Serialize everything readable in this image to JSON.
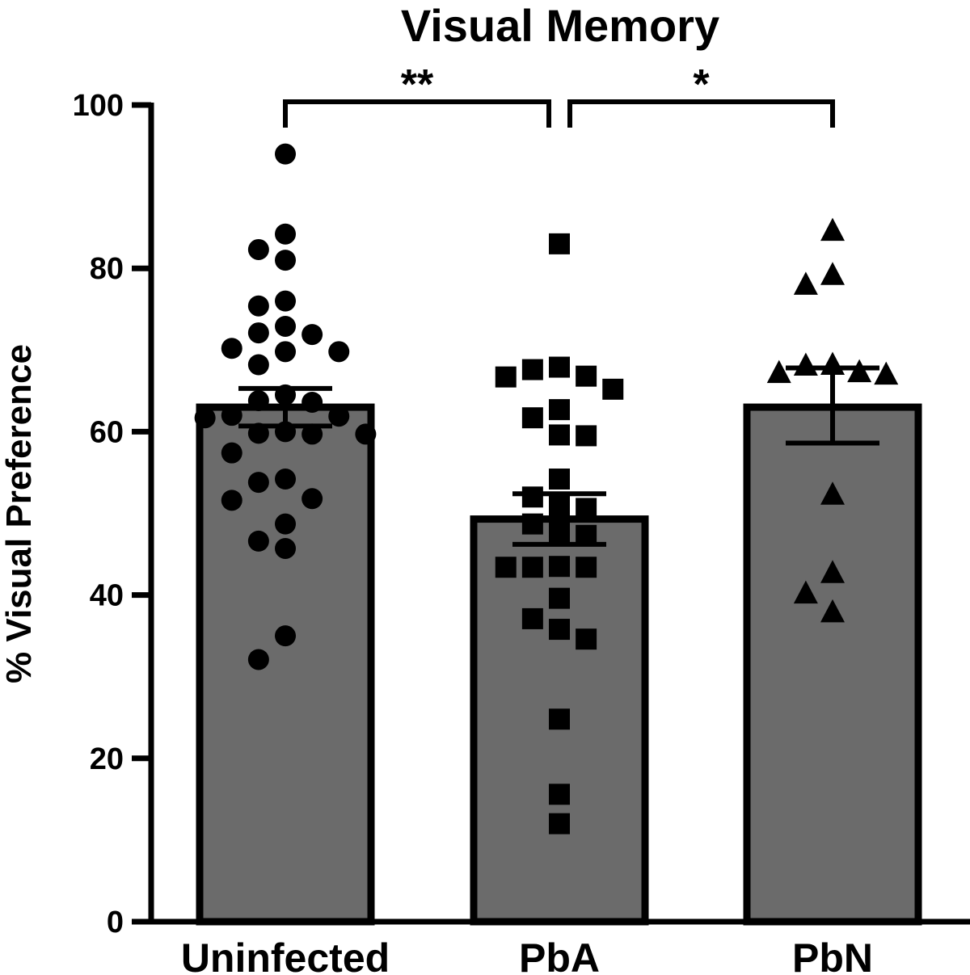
{
  "chart_data": {
    "type": "bar",
    "title": "Visual Memory",
    "ylabel": "% Visual Preference",
    "xlabel": "",
    "ylim": [
      0,
      100
    ],
    "yticks": [
      0,
      20,
      40,
      60,
      80,
      100
    ],
    "ytick_labels": [
      "0",
      "20",
      "40",
      "60",
      "80",
      "100"
    ],
    "categories": [
      "Uninfected",
      "PbA",
      "PbN"
    ],
    "means": [
      63,
      49.3,
      63
    ],
    "sem_upper": [
      65.3,
      52.4,
      67.8
    ],
    "sem_lower": [
      60.7,
      46.2,
      58.6
    ],
    "bar_color": "#6b6b6b",
    "points": [
      {
        "category": "Uninfected",
        "marker": "circle",
        "values": [
          94,
          84.2,
          82.3,
          81,
          76,
          75.4,
          72.9,
          72.1,
          71.9,
          70.2,
          69.8,
          69.8,
          68.2,
          64.5,
          63.8,
          63.6,
          62,
          61.9,
          61.7,
          60,
          59.8,
          59.7,
          59.7,
          57.4,
          54.2,
          53.8,
          51.8,
          51.6,
          48.7,
          46.6,
          45.7,
          35,
          32.1
        ]
      },
      {
        "category": "PbA",
        "marker": "square",
        "values": [
          83,
          67.9,
          67.6,
          66.8,
          66.7,
          65.2,
          62.7,
          61.7,
          59.6,
          59.5,
          54.2,
          52,
          50.9,
          50.6,
          48.7,
          47.6,
          47.3,
          43.5,
          43.4,
          43.4,
          43.4,
          39.6,
          37.1,
          35.8,
          34.6,
          24.8,
          15.6,
          12
        ]
      },
      {
        "category": "PbN",
        "marker": "triangle",
        "values": [
          84.7,
          79.3,
          78.1,
          68.3,
          68.2,
          67.4,
          67.3,
          67.1,
          52.4,
          42.8,
          40.3,
          38
        ]
      }
    ],
    "significance": [
      {
        "from": "Uninfected",
        "to": "PbA",
        "label": "**"
      },
      {
        "from": "PbA",
        "to": "PbN",
        "label": "*"
      }
    ],
    "grid": false,
    "legend": "none"
  }
}
